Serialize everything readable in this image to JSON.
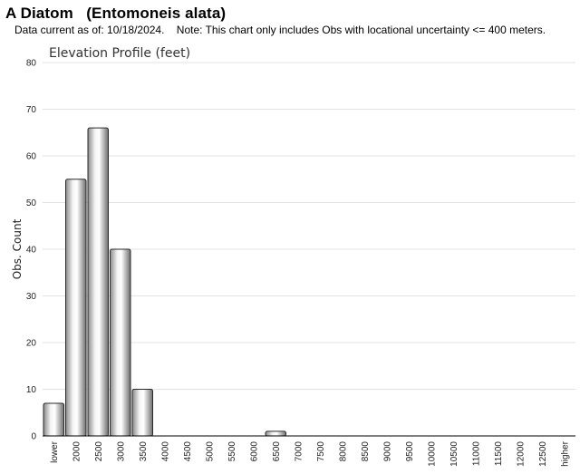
{
  "header": {
    "title": "A Diatom   (Entomoneis alata)",
    "subtitle": "Data current as of: 10/18/2024.    Note: This chart only includes Obs with locational uncertainty <= 400 meters."
  },
  "chart_data": {
    "type": "bar",
    "title": "Elevation Profile (feet)",
    "xlabel": "",
    "ylabel": "Obs. Count",
    "ylim": [
      0,
      80
    ],
    "yticks": [
      0,
      10,
      20,
      30,
      40,
      50,
      60,
      70,
      80
    ],
    "grid": true,
    "categories": [
      "lower",
      "2000",
      "2500",
      "3000",
      "3500",
      "4000",
      "4500",
      "5000",
      "5500",
      "6000",
      "6500",
      "7000",
      "7500",
      "8000",
      "8500",
      "9000",
      "9500",
      "10000",
      "10500",
      "11000",
      "11500",
      "12000",
      "12500",
      "higher"
    ],
    "values": [
      7,
      55,
      66,
      40,
      10,
      0,
      0,
      0,
      0,
      0,
      1,
      0,
      0,
      0,
      0,
      0,
      0,
      0,
      0,
      0,
      0,
      0,
      0,
      0
    ]
  }
}
